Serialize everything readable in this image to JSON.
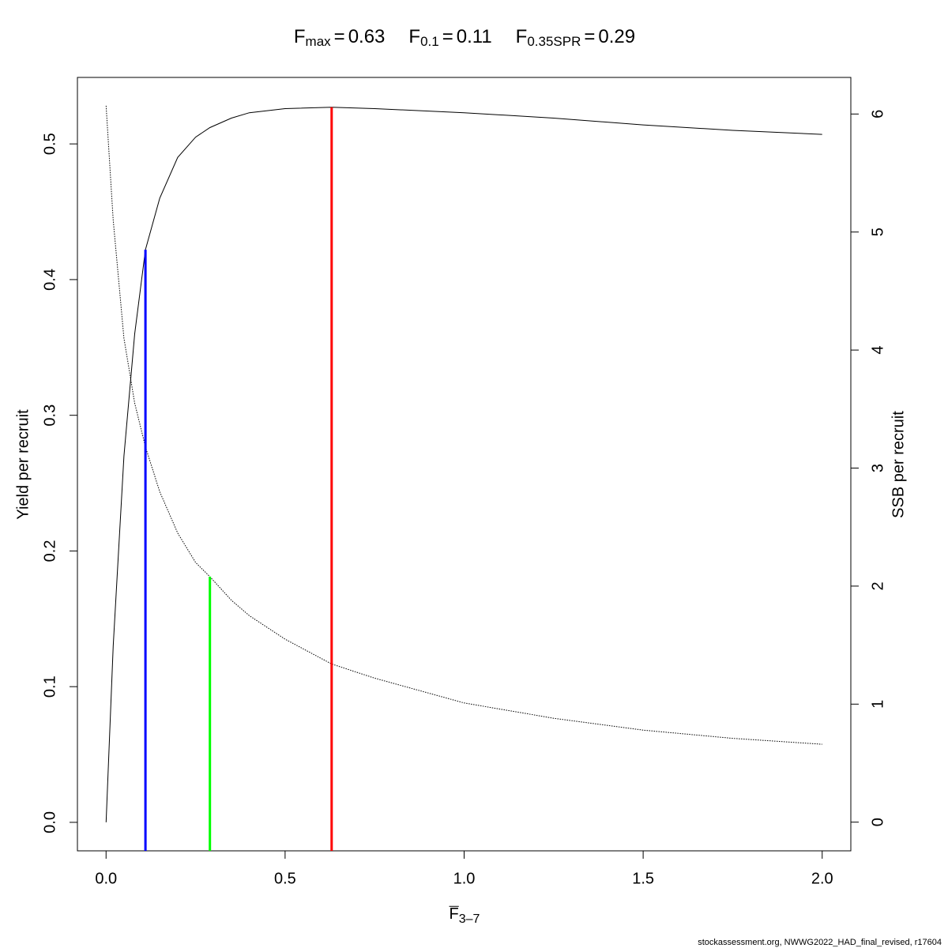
{
  "chart_data": {
    "type": "line",
    "title": {
      "relation": "=",
      "parts": [
        {
          "text": "F",
          "sub": "max",
          "value": 0.63,
          "line_color": "#ff0000",
          "line_top": 0.527,
          "line_axis": "y"
        },
        {
          "text": "F",
          "sub": "0.1",
          "value": 0.11,
          "line_color": "#0000ff",
          "line_top": 0.422,
          "line_axis": "y"
        },
        {
          "text": "F",
          "sub": "0.35SPR",
          "value": 0.29,
          "line_color": "#00ff00",
          "line_top": 2.08,
          "line_axis": "y2"
        }
      ]
    },
    "xlabel": {
      "text": "F",
      "sub": "3–7"
    },
    "ylabel": "Yield per recruit",
    "y2label": "SSB per recruit",
    "footer": "stockassessment.org, NWWG2022_HAD_final_revised, r17604",
    "x": [
      0,
      0.02,
      0.05,
      0.08,
      0.11,
      0.15,
      0.2,
      0.25,
      0.29,
      0.35,
      0.4,
      0.5,
      0.63,
      0.75,
      1.0,
      1.25,
      1.5,
      1.75,
      2.0
    ],
    "series": [
      {
        "color": "#000000",
        "dashed": false,
        "values": [
          0,
          0.13,
          0.27,
          0.36,
          0.422,
          0.46,
          0.49,
          0.505,
          0.512,
          0.519,
          0.523,
          0.526,
          0.527,
          0.526,
          0.523,
          0.519,
          0.514,
          0.51,
          0.507
        ]
      },
      {
        "color": "#000000",
        "dashed": true,
        "axis": "y2",
        "values": [
          6.07,
          5.1,
          4.1,
          3.55,
          3.18,
          2.8,
          2.45,
          2.2,
          2.08,
          1.88,
          1.75,
          1.55,
          1.34,
          1.22,
          1.01,
          0.88,
          0.78,
          0.71,
          0.66
        ]
      }
    ],
    "xlim": [
      -0.08,
      2.08
    ],
    "ylim": [
      -0.021,
      0.549
    ],
    "y2lim": [
      -0.243,
      6.31
    ],
    "xticks": [
      {
        "value": 0,
        "label": "0.0"
      },
      0.5,
      {
        "value": 1,
        "label": "1.0"
      },
      1.5,
      {
        "value": 2,
        "label": "2.0"
      }
    ],
    "yticks": [
      {
        "value": 0,
        "label": "0.0"
      },
      0.1,
      0.2,
      0.3,
      0.4,
      0.5
    ],
    "y2ticks": [
      0,
      1,
      2,
      3,
      4,
      5,
      6
    ]
  }
}
